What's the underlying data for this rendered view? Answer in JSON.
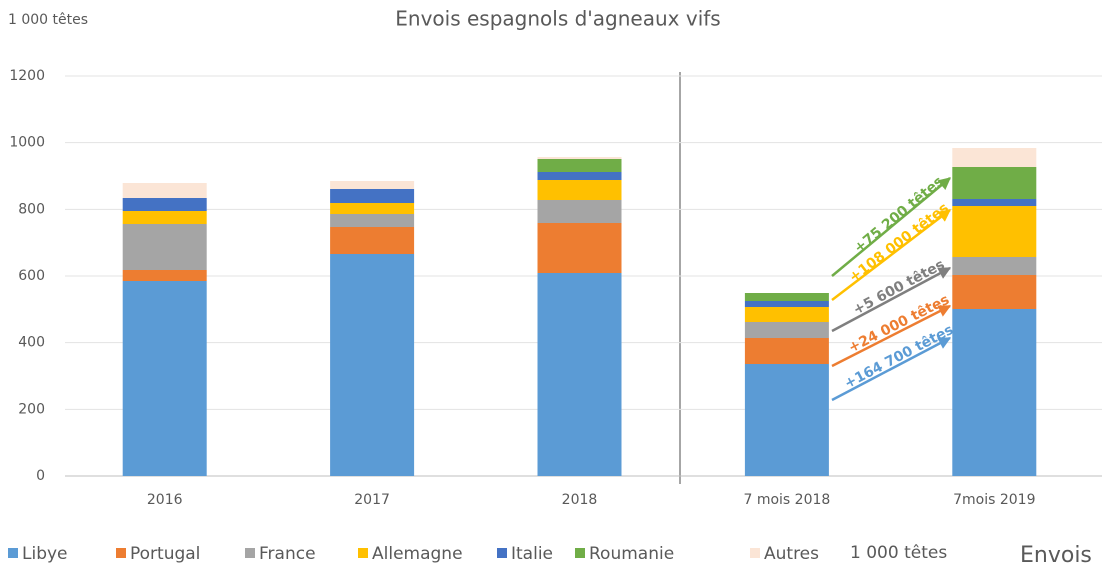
{
  "chart_data": {
    "type": "stacked_bar",
    "title": "Envois espagnols d'agneaux vifs",
    "y_label": "1 000 têtes",
    "legend_unit": "1 000 têtes",
    "legend_extra": "Envois",
    "categories": [
      "2016",
      "2017",
      "2018",
      "7 mois 2018",
      "7mois 2019"
    ],
    "series": [
      {
        "name": "Libye",
        "color": "#5b9bd5",
        "values": [
          585,
          666,
          609,
          336,
          501
        ]
      },
      {
        "name": "Portugal",
        "color": "#ed7d31",
        "values": [
          33,
          81,
          150,
          78,
          102
        ]
      },
      {
        "name": "France",
        "color": "#a5a5a5",
        "values": [
          138,
          39,
          69,
          48,
          54
        ]
      },
      {
        "name": "Allemagne",
        "color": "#ffc000",
        "values": [
          39,
          33,
          60,
          45,
          153
        ]
      },
      {
        "name": "Italie",
        "color": "#4472c4",
        "values": [
          39,
          42,
          24,
          18,
          21
        ]
      },
      {
        "name": "Roumanie",
        "color": "#70ad47",
        "values": [
          0,
          0,
          39,
          24,
          96
        ]
      },
      {
        "name": "Autres",
        "color": "#fbe5d6",
        "values": [
          45,
          24,
          6,
          0,
          57
        ]
      }
    ],
    "annotations": [
      {
        "text": "+164 700 têtes",
        "color": "#5b9bd5"
      },
      {
        "text": "+24 000 têtes",
        "color": "#ed7d31"
      },
      {
        "text": "+5 600 têtes",
        "color": "#7f7f7f"
      },
      {
        "text": "+108 000 têtes",
        "color": "#ffc000"
      },
      {
        "text": "+75 200 têtes",
        "color": "#70ad47"
      }
    ],
    "ylim": [
      0,
      1200
    ],
    "yticks": [
      0,
      200,
      400,
      600,
      800,
      1000,
      1200
    ],
    "grid": true,
    "legend": "bottom"
  }
}
